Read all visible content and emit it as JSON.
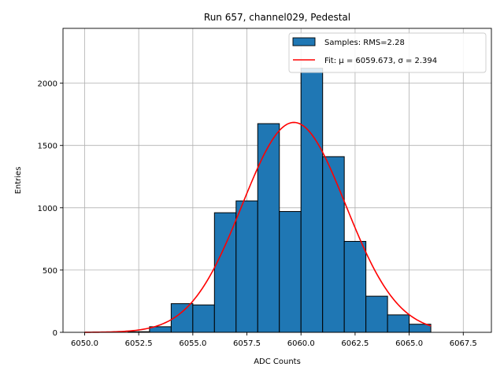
{
  "chart_data": {
    "type": "bar",
    "title": "Run 657, channel029, Pedestal",
    "xlabel": "ADC Counts",
    "ylabel": "Entries",
    "xlim": [
      6049.0,
      6068.8
    ],
    "ylim": [
      0,
      2440
    ],
    "grid": true,
    "xticks": [
      6050.0,
      6052.5,
      6055.0,
      6057.5,
      6060.0,
      6062.5,
      6065.0,
      6067.5
    ],
    "xtick_labels": [
      "6050.0",
      "6052.5",
      "6055.0",
      "6057.5",
      "6060.0",
      "6062.5",
      "6065.0",
      "6067.5"
    ],
    "yticks": [
      0,
      500,
      1000,
      1500,
      2000
    ],
    "ytick_labels": [
      "0",
      "500",
      "1000",
      "1500",
      "2000"
    ],
    "bin_edges": [
      6052,
      6053,
      6054,
      6055,
      6056,
      6057,
      6058,
      6059,
      6060,
      6061,
      6062,
      6063,
      6064,
      6065,
      6066
    ],
    "values": [
      5,
      45,
      230,
      220,
      960,
      1055,
      1675,
      970,
      2120,
      1410,
      730,
      290,
      140,
      65
    ],
    "bar_color": "#1f77b4",
    "bar_edge_color": "#000000",
    "fit": {
      "mu": 6059.673,
      "sigma": 2.394,
      "amplitude": 1685,
      "x_range": [
        6050.0,
        6066.0
      ],
      "color": "#ff0000"
    },
    "legend": {
      "position": "top-right",
      "entries": [
        {
          "label": "Samples: RMS=2.28",
          "kind": "patch"
        },
        {
          "label": "Fit: μ = 6059.673, σ = 2.394",
          "kind": "line"
        }
      ]
    }
  }
}
